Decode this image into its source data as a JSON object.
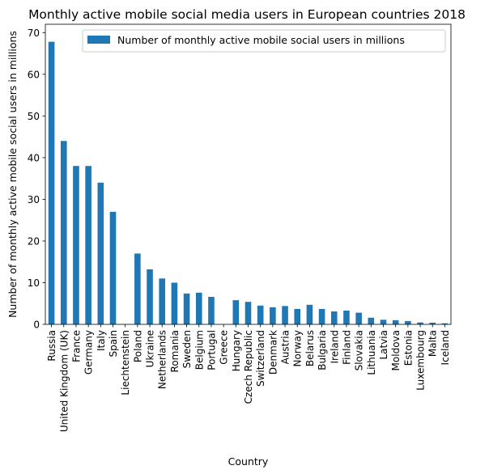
{
  "chart_data": {
    "type": "bar",
    "title": "Monthly active mobile social media users in European countries 2018",
    "xlabel": "Country",
    "ylabel": "Number of monthly active mobile social users in millions",
    "ylim": [
      0,
      72
    ],
    "yticks": [
      0,
      10,
      20,
      30,
      40,
      50,
      60,
      70
    ],
    "grid": false,
    "legend_position": "top-right",
    "bar_color": "#1f77b4",
    "categories": [
      "Russia",
      "United Kingdom (UK)",
      "France",
      "Germany",
      "Italy",
      "Spain",
      "Liechtenstein",
      "Poland",
      "Ukraine",
      "Netherlands",
      "Romania",
      "Sweden",
      "Belgium",
      "Portugal",
      "Greece",
      "Hungary",
      "Czech Republic",
      "Switzerland",
      "Denmark",
      "Austria",
      "Norway",
      "Belarus",
      "Bulgaria",
      "Ireland",
      "Finland",
      "Slovakia",
      "Lithuania",
      "Latvia",
      "Moldova",
      "Estonia",
      "Luxembourg",
      "Malta",
      "Iceland"
    ],
    "series": [
      {
        "name": "Number of monthly active mobile social users in millions",
        "values": [
          67.8,
          44,
          38,
          38,
          34,
          27,
          0.02,
          17,
          13.2,
          11,
          10,
          7.4,
          7.6,
          6.6,
          0,
          5.8,
          5.4,
          4.5,
          4.1,
          4.4,
          3.7,
          4.7,
          3.7,
          3.1,
          3.3,
          2.8,
          1.6,
          1.1,
          1.0,
          0.8,
          0.45,
          0.4,
          0.25
        ]
      }
    ]
  }
}
